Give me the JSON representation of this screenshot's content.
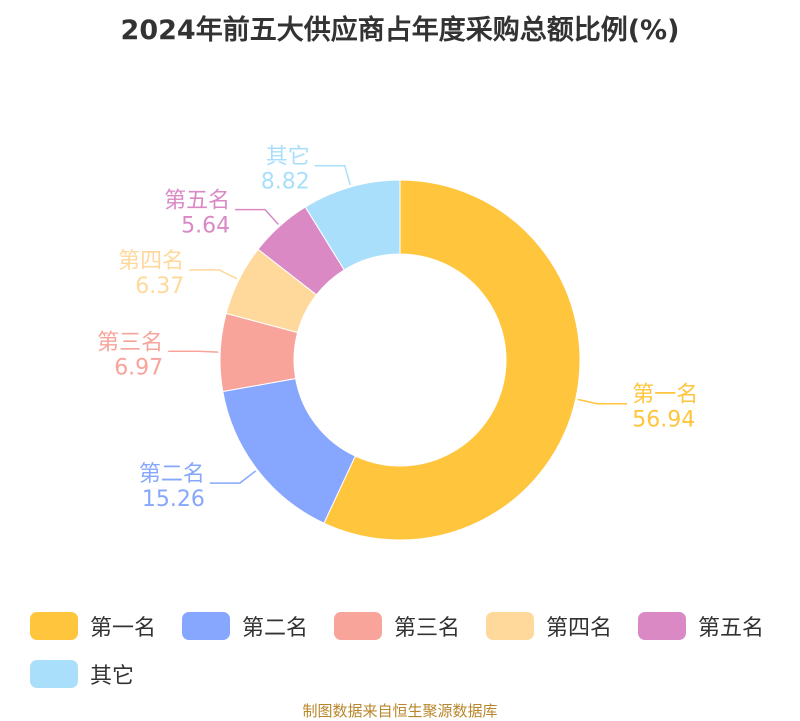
{
  "chart_data": {
    "type": "pie",
    "title": "2024年前五大供应商占年度采购总额比例(%)",
    "categories": [
      "第一名",
      "第二名",
      "第三名",
      "第四名",
      "第五名",
      "其它"
    ],
    "values": [
      56.94,
      15.26,
      6.97,
      6.37,
      5.64,
      8.82
    ],
    "value_labels": [
      "56.94",
      "15.26",
      "6.97",
      "6.37",
      "5.64",
      "8.82"
    ],
    "colors": [
      "#ffc53d",
      "#86a7fd",
      "#f8a49b",
      "#ffd99b",
      "#da89c5",
      "#a9dffb"
    ],
    "donut": true,
    "legend_position": "bottom"
  },
  "source": "制图数据来自恒生聚源数据库"
}
